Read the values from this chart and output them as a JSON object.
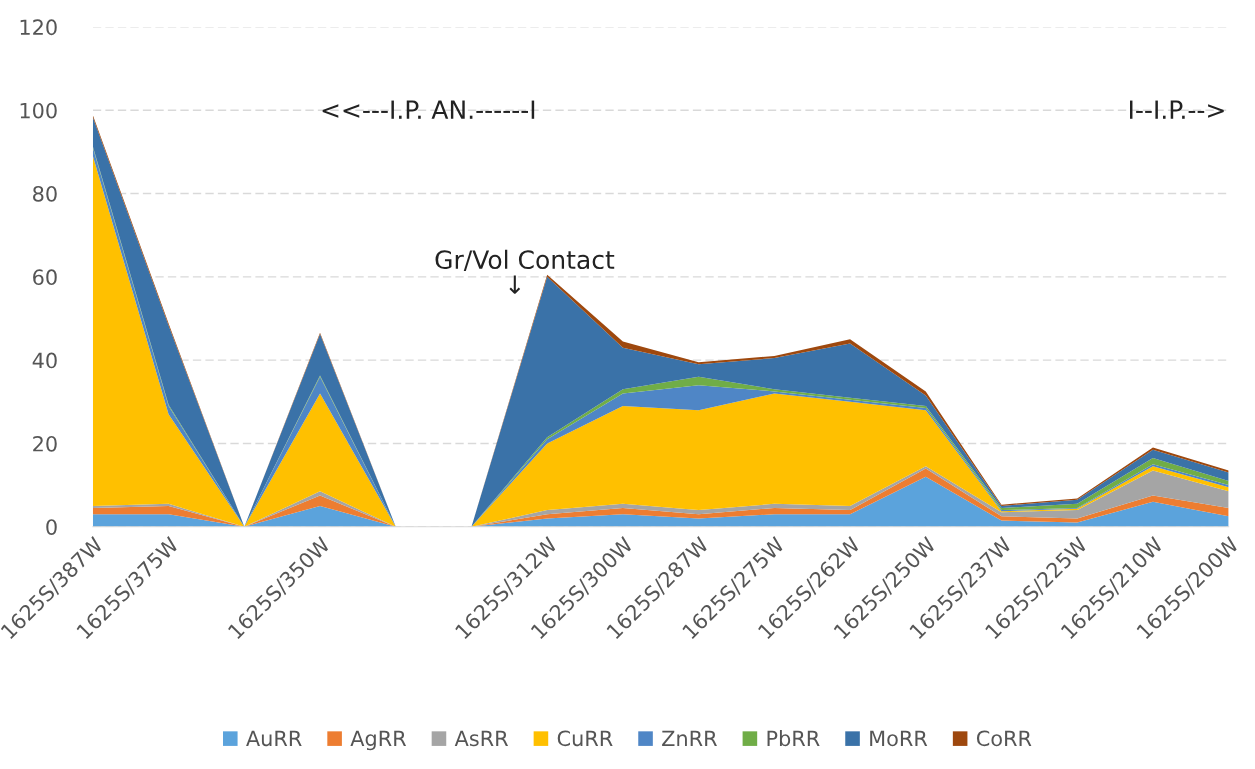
{
  "chart_data": {
    "type": "area",
    "stacked": true,
    "categories": [
      "1625S/387W",
      "1625S/375W",
      null,
      "1625S/350W",
      null,
      null,
      "1625S/312W",
      "1625S/300W",
      "1625S/287W",
      "1625S/275W",
      "1625S/262W",
      "1625S/250W",
      "1625S/237W",
      "1625S/225W",
      "1625S/210W",
      "1625S/200W"
    ],
    "series": [
      {
        "name": "AuRR",
        "color": "#5ba3dc",
        "values": [
          3,
          3,
          0,
          5,
          0,
          0,
          2,
          3,
          2,
          3,
          3,
          12,
          1.5,
          1,
          6,
          2.5
        ]
      },
      {
        "name": "AgRR",
        "color": "#ed7d31",
        "values": [
          1.5,
          2,
          0,
          2.5,
          0,
          0,
          1,
          1.5,
          1,
          1.5,
          1,
          2,
          1,
          1,
          1.5,
          2
        ]
      },
      {
        "name": "AsRR",
        "color": "#a5a5a5",
        "values": [
          0.5,
          0.5,
          0,
          1,
          0,
          0,
          1,
          1,
          1,
          1,
          1,
          0.5,
          1,
          2,
          6,
          4
        ]
      },
      {
        "name": "CuRR",
        "color": "#ffc000",
        "values": [
          84,
          21.5,
          0,
          23.5,
          0,
          0,
          16,
          23.5,
          24,
          26.5,
          25,
          13.5,
          0.2,
          0.3,
          1,
          1
        ]
      },
      {
        "name": "ZnRR",
        "color": "#4f86c6",
        "values": [
          2,
          2,
          0,
          4,
          0,
          0,
          1,
          3,
          6,
          0.5,
          0.5,
          0.5,
          0.3,
          0.2,
          0.5,
          0.5
        ]
      },
      {
        "name": "PbRR",
        "color": "#70ad47",
        "values": [
          0.3,
          0.3,
          0,
          0.3,
          0,
          0,
          0.5,
          1,
          2,
          0.5,
          0.5,
          0.5,
          0.5,
          1,
          1.5,
          1
        ]
      },
      {
        "name": "MoRR",
        "color": "#3a72a8",
        "values": [
          7,
          19,
          0,
          10,
          0,
          0,
          38.5,
          10,
          3,
          7.5,
          13,
          2.5,
          0.5,
          1,
          2,
          2
        ]
      },
      {
        "name": "CoRR",
        "color": "#9e480e",
        "values": [
          0.5,
          0.5,
          0,
          0.3,
          0,
          0,
          0.5,
          1.5,
          0.5,
          0.5,
          1,
          1,
          0.3,
          0.3,
          0.5,
          0.5
        ]
      }
    ],
    "ylim": [
      0,
      120
    ],
    "yticks": [
      0,
      20,
      40,
      60,
      80,
      100,
      120
    ],
    "grid": "y",
    "legend": "bottom",
    "annotations": [
      "<<---I.P. AN.------I",
      "I--I.P.-->",
      "Gr/Vol Contact",
      "↓"
    ]
  }
}
